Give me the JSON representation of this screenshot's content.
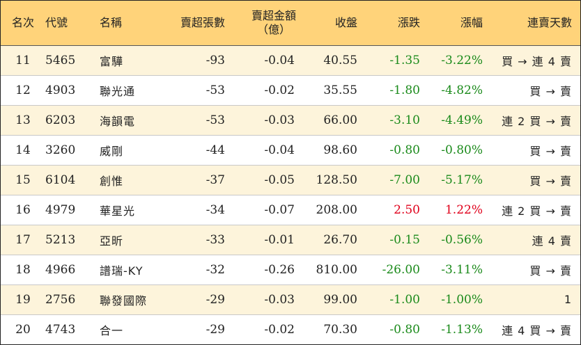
{
  "header": {
    "rank": "名次",
    "code": "代號",
    "name": "名稱",
    "sell_shares": "賣超張數",
    "sell_amount_line1": "賣超金額",
    "sell_amount_line2": "（億）",
    "close": "收盤",
    "change": "漲跌",
    "change_pct": "漲幅",
    "streak": "連賣天數"
  },
  "colors": {
    "header_bg": "#ffd37a",
    "row_odd_bg": "#fdf4db",
    "row_even_bg": "#ffffff",
    "up": "#e0001b",
    "down": "#1a8a1a"
  },
  "rows": [
    {
      "rank": "11",
      "code": "5465",
      "name": "富驊",
      "sell_shares": "-93",
      "sell_amount": "-0.04",
      "close": "40.55",
      "change": "-1.35",
      "change_pct": "-3.22%",
      "direction": "down",
      "streak": "買 → 連 4 賣"
    },
    {
      "rank": "12",
      "code": "4903",
      "name": "聯光通",
      "sell_shares": "-53",
      "sell_amount": "-0.02",
      "close": "35.55",
      "change": "-1.80",
      "change_pct": "-4.82%",
      "direction": "down",
      "streak": "買 → 賣"
    },
    {
      "rank": "13",
      "code": "6203",
      "name": "海韻電",
      "sell_shares": "-53",
      "sell_amount": "-0.03",
      "close": "66.00",
      "change": "-3.10",
      "change_pct": "-4.49%",
      "direction": "down",
      "streak": "連 2 買 → 賣"
    },
    {
      "rank": "14",
      "code": "3260",
      "name": "威剛",
      "sell_shares": "-44",
      "sell_amount": "-0.04",
      "close": "98.60",
      "change": "-0.80",
      "change_pct": "-0.80%",
      "direction": "down",
      "streak": "買 → 賣"
    },
    {
      "rank": "15",
      "code": "6104",
      "name": "創惟",
      "sell_shares": "-37",
      "sell_amount": "-0.05",
      "close": "128.50",
      "change": "-7.00",
      "change_pct": "-5.17%",
      "direction": "down",
      "streak": "買 → 賣"
    },
    {
      "rank": "16",
      "code": "4979",
      "name": "華星光",
      "sell_shares": "-34",
      "sell_amount": "-0.07",
      "close": "208.00",
      "change": "2.50",
      "change_pct": "1.22%",
      "direction": "up",
      "streak": "連 2 買 → 賣"
    },
    {
      "rank": "17",
      "code": "5213",
      "name": "亞昕",
      "sell_shares": "-33",
      "sell_amount": "-0.01",
      "close": "26.70",
      "change": "-0.15",
      "change_pct": "-0.56%",
      "direction": "down",
      "streak": "連 4 賣"
    },
    {
      "rank": "18",
      "code": "4966",
      "name": "譜瑞-KY",
      "sell_shares": "-32",
      "sell_amount": "-0.26",
      "close": "810.00",
      "change": "-26.00",
      "change_pct": "-3.11%",
      "direction": "down",
      "streak": "買 → 賣"
    },
    {
      "rank": "19",
      "code": "2756",
      "name": "聯發國際",
      "sell_shares": "-29",
      "sell_amount": "-0.03",
      "close": "99.00",
      "change": "-1.00",
      "change_pct": "-1.00%",
      "direction": "down",
      "streak": "1"
    },
    {
      "rank": "20",
      "code": "4743",
      "name": "合一",
      "sell_shares": "-29",
      "sell_amount": "-0.02",
      "close": "70.30",
      "change": "-0.80",
      "change_pct": "-1.13%",
      "direction": "down",
      "streak": "連 4 買 → 賣"
    }
  ]
}
